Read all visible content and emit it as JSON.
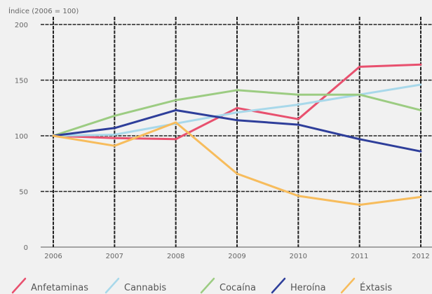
{
  "chart_data": {
    "type": "line",
    "ylabel": "Índice (2006 = 100)",
    "x": [
      "2006",
      "2007",
      "2008",
      "2009",
      "2010",
      "2011",
      "2012"
    ],
    "ylim": [
      0,
      200
    ],
    "yticks": [
      0,
      50,
      100,
      150,
      200
    ],
    "grid": true,
    "legend_position": "bottom",
    "series": [
      {
        "name": "Anfetaminas",
        "color": "#e8506e",
        "values": [
          100,
          98,
          97,
          125,
          115,
          162,
          164
        ]
      },
      {
        "name": "Cannabis",
        "color": "#a8d8ea",
        "values": [
          100,
          101,
          111,
          121,
          128,
          137,
          146
        ]
      },
      {
        "name": "Cocaína",
        "color": "#9ccc82",
        "values": [
          100,
          118,
          132,
          141,
          137,
          137,
          123
        ]
      },
      {
        "name": "Heroína",
        "color": "#2e3e9a",
        "values": [
          100,
          107,
          123,
          114,
          110,
          97,
          86
        ]
      },
      {
        "name": "Éxtasis",
        "color": "#f7bc5c",
        "values": [
          100,
          91,
          112,
          66,
          46,
          38,
          45
        ]
      }
    ]
  }
}
